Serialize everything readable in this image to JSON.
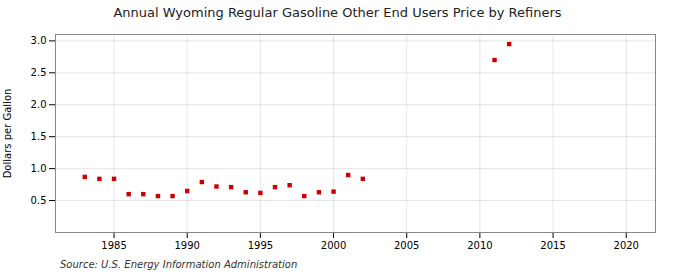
{
  "chart_data": {
    "type": "scatter",
    "title": "Annual Wyoming Regular Gasoline Other End Users Price by Refiners",
    "ylabel": "Dollars per Gallon",
    "caption": "Source: U.S. Energy Information Administration",
    "x": [
      1983,
      1984,
      1985,
      1986,
      1987,
      1988,
      1989,
      1990,
      1991,
      1992,
      1993,
      1994,
      1995,
      1996,
      1997,
      1998,
      1999,
      2000,
      2001,
      2002,
      2011,
      2012
    ],
    "values": [
      0.87,
      0.84,
      0.84,
      0.6,
      0.6,
      0.57,
      0.57,
      0.65,
      0.79,
      0.72,
      0.71,
      0.63,
      0.62,
      0.71,
      0.74,
      0.57,
      0.63,
      0.64,
      0.9,
      0.84,
      2.7,
      2.95
    ],
    "color": "#cc0000",
    "marker": "square",
    "xlim": [
      1981,
      2022
    ],
    "xticks": [
      1985,
      1990,
      1995,
      2000,
      2005,
      2010,
      2015,
      2020
    ],
    "ylim": [
      0.0,
      3.1
    ],
    "yticks": [
      0.5,
      {
        "value": 1.0,
        "label": "1.0"
      },
      1.5,
      {
        "value": 2.0,
        "label": "2.0"
      },
      2.5,
      {
        "value": 3.0,
        "label": "3.0"
      }
    ],
    "grid": true
  }
}
